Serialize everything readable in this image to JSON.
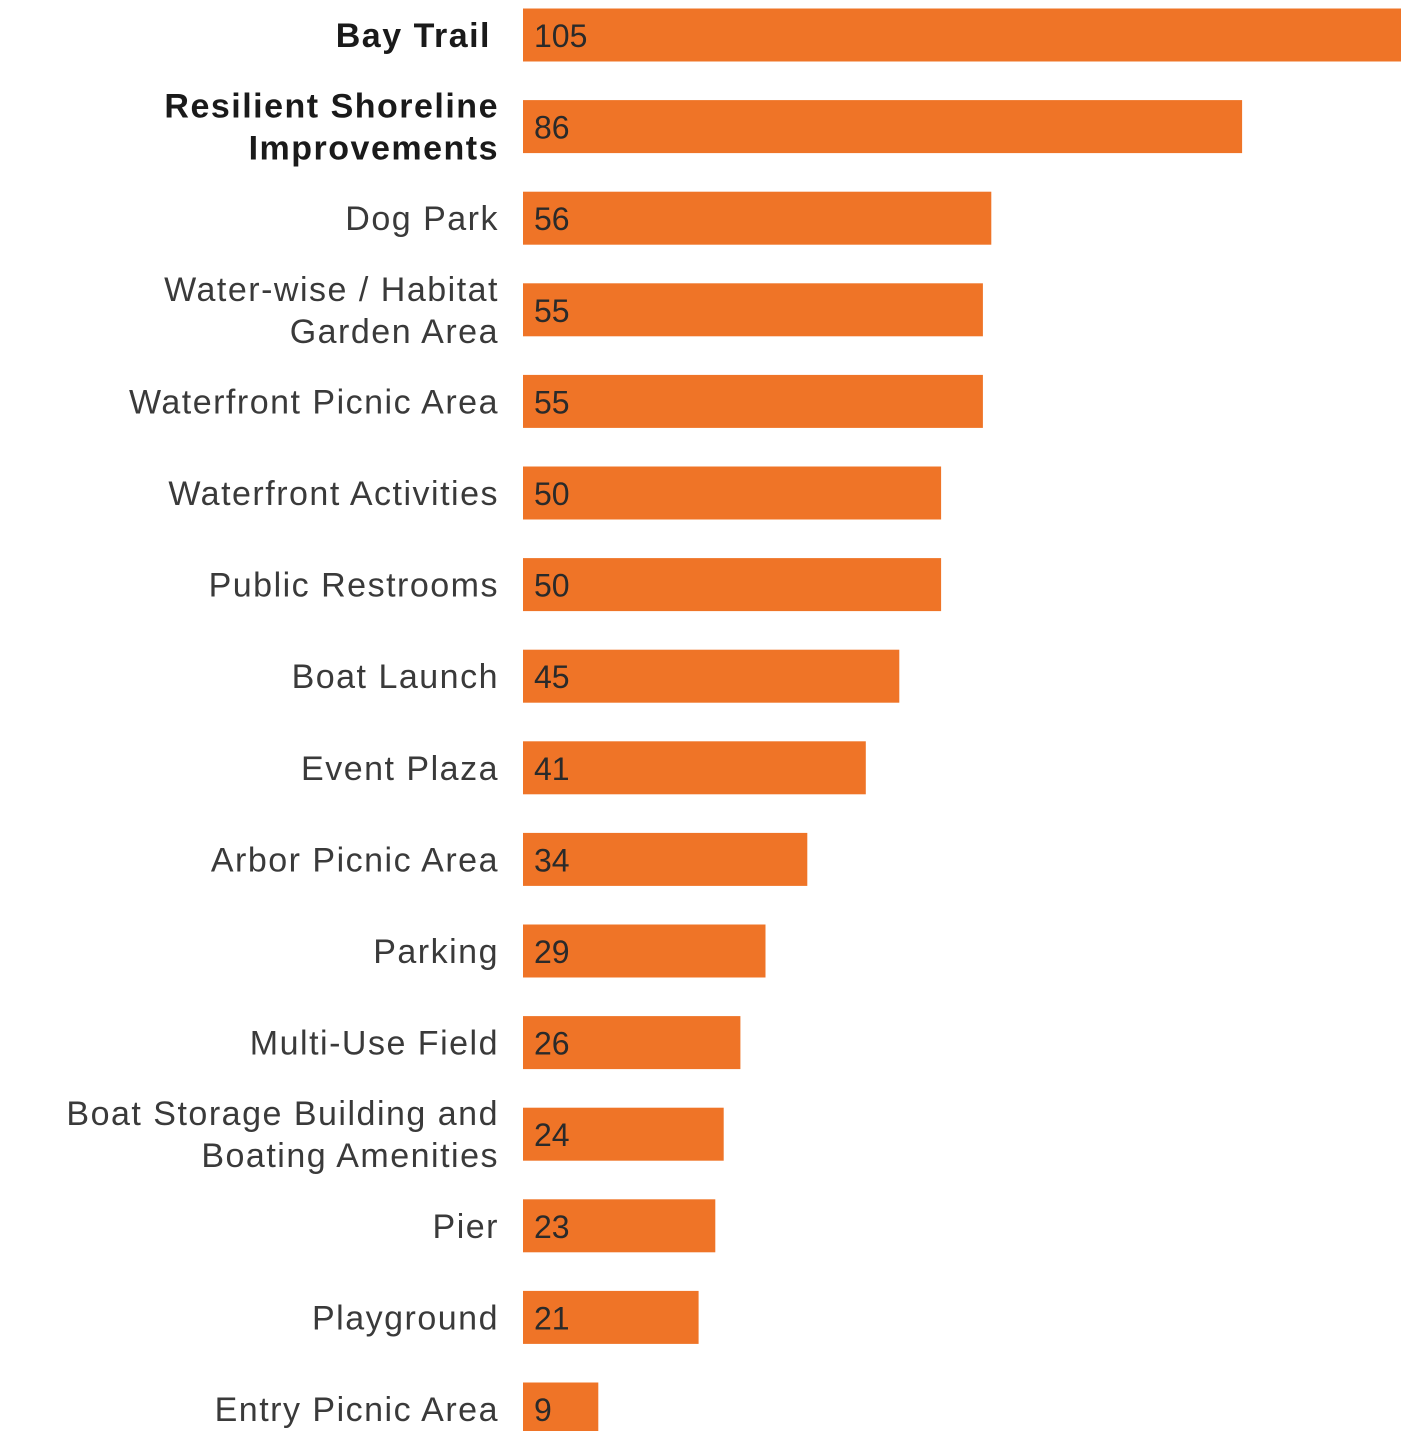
{
  "chart_data": {
    "type": "bar",
    "orientation": "horizontal",
    "title": "",
    "xlabel": "",
    "ylabel": "",
    "grid": false,
    "bar_color": "#EF7427",
    "xlim": [
      0,
      105
    ],
    "categories": [
      {
        "lines": [
          "Bay Trail"
        ],
        "bold": true
      },
      {
        "lines": [
          "Resilient Shoreline",
          "Improvements"
        ],
        "bold": true
      },
      {
        "lines": [
          "Dog Park"
        ],
        "bold": false
      },
      {
        "lines": [
          "Water-wise / Habitat",
          "Garden Area"
        ],
        "bold": false
      },
      {
        "lines": [
          "Waterfront Picnic Area"
        ],
        "bold": false
      },
      {
        "lines": [
          "Waterfront Activities"
        ],
        "bold": false
      },
      {
        "lines": [
          "Public Restrooms"
        ],
        "bold": false
      },
      {
        "lines": [
          "Boat Launch"
        ],
        "bold": false
      },
      {
        "lines": [
          "Event Plaza"
        ],
        "bold": false
      },
      {
        "lines": [
          "Arbor Picnic Area"
        ],
        "bold": false
      },
      {
        "lines": [
          "Parking"
        ],
        "bold": false
      },
      {
        "lines": [
          "Multi-Use Field"
        ],
        "bold": false
      },
      {
        "lines": [
          "Boat Storage Building and",
          "Boating Amenities"
        ],
        "bold": false
      },
      {
        "lines": [
          "Pier"
        ],
        "bold": false
      },
      {
        "lines": [
          "Playground"
        ],
        "bold": false
      },
      {
        "lines": [
          "Entry Picnic Area"
        ],
        "bold": false
      }
    ],
    "values": [
      105,
      86,
      56,
      55,
      55,
      50,
      50,
      45,
      41,
      34,
      29,
      26,
      24,
      23,
      21,
      9
    ]
  }
}
